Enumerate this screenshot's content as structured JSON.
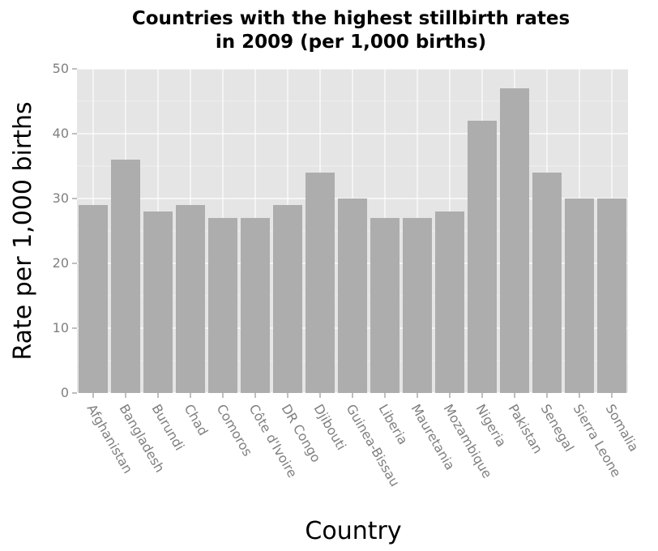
{
  "chart_data": {
    "type": "bar",
    "title": "Countries with the highest stillbirth rates in 2009 (per 1,000 births)",
    "title_lines": [
      "Countries with the highest stillbirth rates",
      "in 2009 (per 1,000 births)"
    ],
    "xlabel": "Country",
    "ylabel": "Rate per 1,000 births",
    "categories": [
      "Afghanistan",
      "Bangladesh",
      "Burundi",
      "Chad",
      "Comoros",
      "Côte d'Ivoire",
      "DR Congo",
      "Djibouti",
      "Guinea-Bissau",
      "Liberia",
      "Mauretania",
      "Mozambique",
      "Nigeria",
      "Pakistan",
      "Senegal",
      "Sierra Leone",
      "Somalia"
    ],
    "values": [
      29,
      36,
      28,
      29,
      27,
      27,
      29,
      34,
      30,
      27,
      27,
      28,
      42,
      47,
      34,
      30,
      30
    ],
    "ylim": [
      0,
      50
    ],
    "yticks": [
      0,
      10,
      20,
      30,
      40,
      50
    ],
    "grid": true,
    "legend": "none",
    "colors": {
      "bar": "#adadad",
      "panel": "#e5e5e5",
      "grid": "#ffffff",
      "tick_text": "#7f7f7f"
    }
  }
}
